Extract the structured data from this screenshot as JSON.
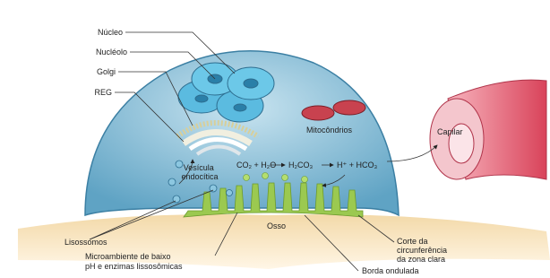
{
  "labels": {
    "nucleus": "Núcleo",
    "nucleolus": "Nucléolo",
    "golgi": "Golgi",
    "reg": "REG",
    "mitochondria": "Mitocôndrios",
    "capillary": "Capilar",
    "vesicle": [
      "Vesícula",
      "endocítica"
    ],
    "bone": "Osso",
    "lysosomes": "Lisossomos",
    "microenvironment": [
      "Microambiente de baixo",
      "pH e enzimas lissosômicas"
    ],
    "clear_zone": [
      "Corte da",
      "circunferência",
      "da zona clara"
    ],
    "ruffled_border": "Borda ondulada"
  },
  "equation": [
    "CO₂ + H₂O",
    "H₂CO₃",
    "H⁺ + HCO₃"
  ]
}
